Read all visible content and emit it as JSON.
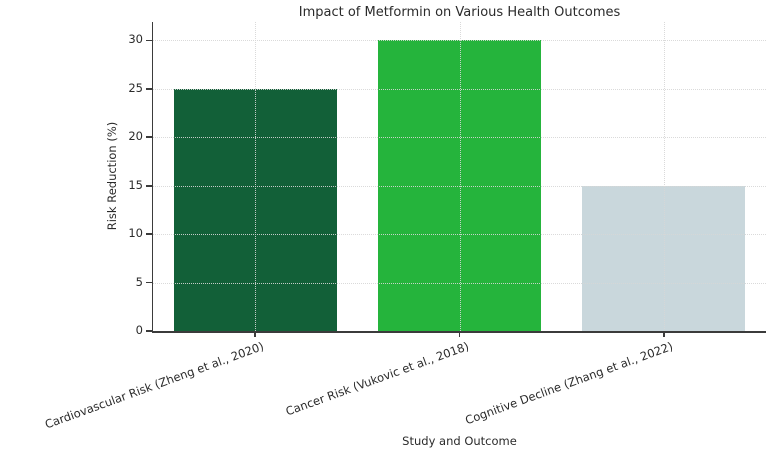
{
  "chart_data": {
    "type": "bar",
    "title": "Impact of Metformin on Various Health Outcomes",
    "xlabel": "Study and Outcome",
    "ylabel": "Risk Reduction (%)",
    "categories": [
      "Cardiovascular Risk (Zheng et al., 2020)",
      "Cancer Risk (Vukovic et al., 2018)",
      "Cognitive Decline (Zhang et al., 2022)"
    ],
    "values": [
      25,
      30,
      15
    ],
    "bar_colors": [
      "#126038",
      "#25b43c",
      "#c9d7dc"
    ],
    "yticks": [
      0,
      5,
      10,
      15,
      20,
      25,
      30
    ],
    "ylim": [
      0,
      31.9
    ],
    "grid": "both-dotted",
    "legend": "none",
    "background_color": "#ffffff",
    "spine_color": "#3b3b3b"
  }
}
